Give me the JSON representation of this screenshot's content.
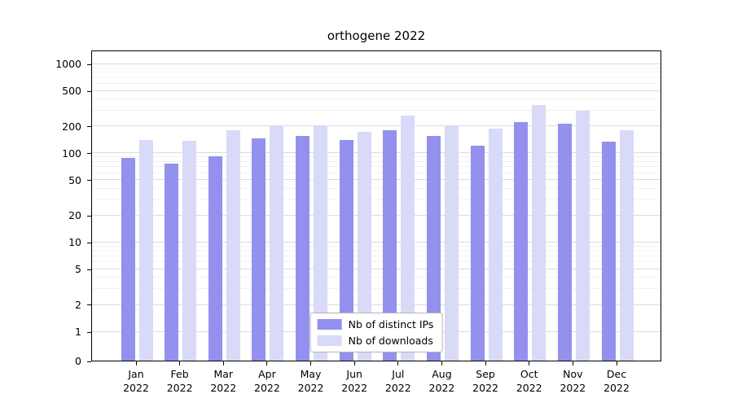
{
  "chart_data": {
    "type": "bar",
    "title": "orthogene 2022",
    "yscale": "symlog",
    "grid": true,
    "yticks": [
      0,
      1,
      2,
      5,
      10,
      20,
      50,
      100,
      200,
      500,
      1000
    ],
    "ylim": [
      0,
      1400
    ],
    "legend_position": "lower center",
    "categories": [
      {
        "month": "Jan",
        "year": "2022"
      },
      {
        "month": "Feb",
        "year": "2022"
      },
      {
        "month": "Mar",
        "year": "2022"
      },
      {
        "month": "Apr",
        "year": "2022"
      },
      {
        "month": "May",
        "year": "2022"
      },
      {
        "month": "Jun",
        "year": "2022"
      },
      {
        "month": "Jul",
        "year": "2022"
      },
      {
        "month": "Aug",
        "year": "2022"
      },
      {
        "month": "Sep",
        "year": "2022"
      },
      {
        "month": "Oct",
        "year": "2022"
      },
      {
        "month": "Nov",
        "year": "2022"
      },
      {
        "month": "Dec",
        "year": "2022"
      }
    ],
    "series": [
      {
        "name": "Nb of distinct IPs",
        "color": "#9390ee",
        "values": [
          88,
          76,
          92,
          145,
          153,
          140,
          178,
          155,
          120,
          222,
          210,
          134
        ]
      },
      {
        "name": "Nb of downloads",
        "color": "#d9d9f8",
        "values": [
          140,
          135,
          178,
          200,
          203,
          170,
          260,
          203,
          186,
          345,
          295,
          180
        ]
      }
    ],
    "colors": {
      "grid_major": "#dcdcdc",
      "grid_minor": "#f2f2f2",
      "axis": "#000000"
    }
  }
}
